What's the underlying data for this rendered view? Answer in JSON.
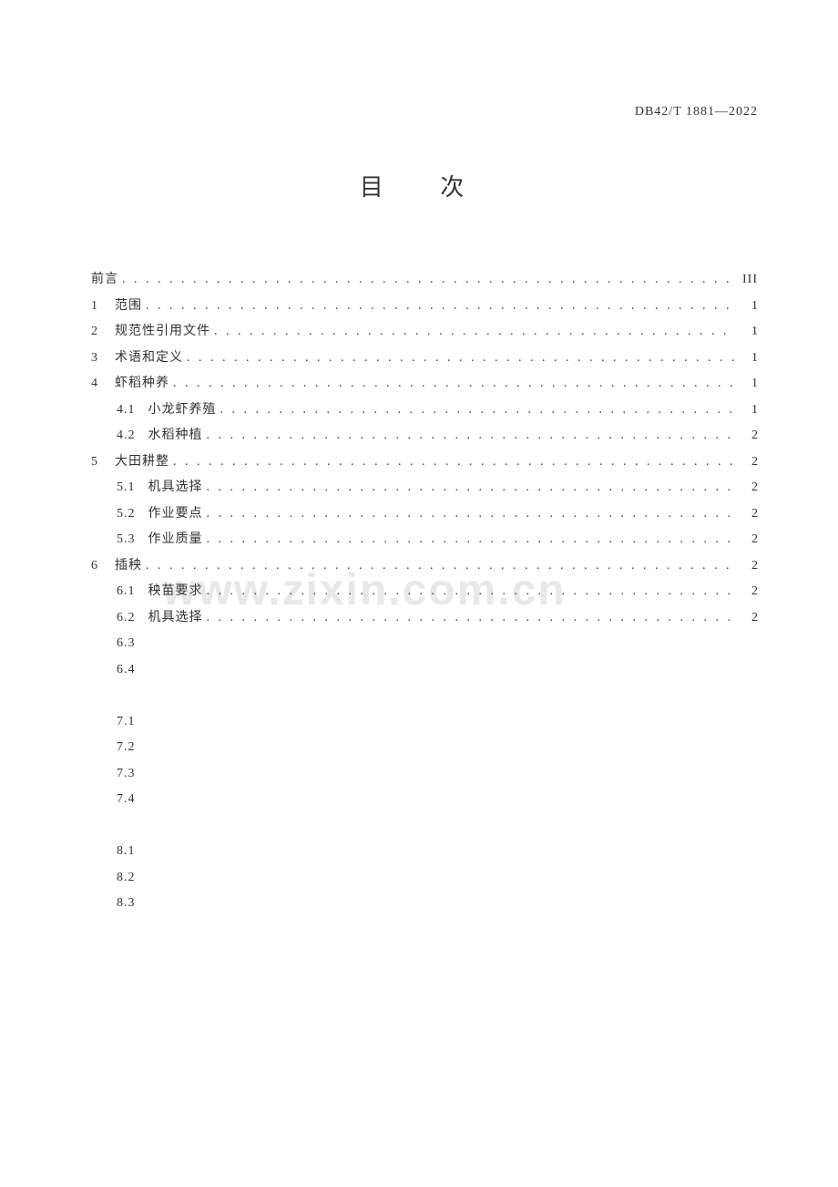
{
  "document": {
    "standard_code": "DB42/T 1881—2022",
    "title": "目 次",
    "watermark": "www.zixin.com.cn"
  },
  "toc": {
    "entries": [
      {
        "level": 0,
        "num": "",
        "label": "前言",
        "page": "III",
        "roman": true,
        "dots": true
      },
      {
        "level": 0,
        "num": "1",
        "label": "范围",
        "page": "1",
        "dots": true
      },
      {
        "level": 0,
        "num": "2",
        "label": "规范性引用文件",
        "page": "1",
        "dots": true
      },
      {
        "level": 0,
        "num": "3",
        "label": "术语和定义",
        "page": "1",
        "dots": true
      },
      {
        "level": 0,
        "num": "4",
        "label": "虾稻种养",
        "page": "1",
        "dots": true
      },
      {
        "level": 1,
        "num": "4.1",
        "label": "小龙虾养殖",
        "page": "1",
        "dots": true
      },
      {
        "level": 1,
        "num": "4.2",
        "label": "水稻种植",
        "page": "2",
        "dots": true
      },
      {
        "level": 0,
        "num": "5",
        "label": "大田耕整",
        "page": "2",
        "dots": true
      },
      {
        "level": 1,
        "num": "5.1",
        "label": "机具选择",
        "page": "2",
        "dots": true
      },
      {
        "level": 1,
        "num": "5.2",
        "label": "作业要点",
        "page": "2",
        "dots": true
      },
      {
        "level": 1,
        "num": "5.3",
        "label": "作业质量",
        "page": "2",
        "dots": true
      },
      {
        "level": 0,
        "num": "6",
        "label": "插秧",
        "page": "2",
        "dots": true
      },
      {
        "level": 1,
        "num": "6.1",
        "label": "秧苗要求",
        "page": "2",
        "dots": true
      },
      {
        "level": 1,
        "num": "6.2",
        "label": "机具选择",
        "page": "2",
        "dots": true
      },
      {
        "level": 1,
        "num": "6.3",
        "label": "",
        "page": "",
        "dots": false
      },
      {
        "level": 1,
        "num": "6.4",
        "label": "",
        "page": "",
        "dots": false
      },
      {
        "level": 0,
        "num": "",
        "label": "",
        "page": "",
        "dots": false,
        "spacer": true
      },
      {
        "level": 1,
        "num": "7.1",
        "label": "",
        "page": "",
        "dots": false
      },
      {
        "level": 1,
        "num": "7.2",
        "label": "",
        "page": "",
        "dots": false
      },
      {
        "level": 1,
        "num": "7.3",
        "label": "",
        "page": "",
        "dots": false
      },
      {
        "level": 1,
        "num": "7.4",
        "label": "",
        "page": "",
        "dots": false
      },
      {
        "level": 0,
        "num": "",
        "label": "",
        "page": "",
        "dots": false,
        "spacer": true
      },
      {
        "level": 1,
        "num": "8.1",
        "label": "",
        "page": "",
        "dots": false
      },
      {
        "level": 1,
        "num": "8.2",
        "label": "",
        "page": "",
        "dots": false
      },
      {
        "level": 1,
        "num": "8.3",
        "label": "",
        "page": "",
        "dots": false
      }
    ]
  },
  "styles": {
    "text_color": "#333333",
    "watermark_color": "#e8e8e8",
    "background_color": "#ffffff",
    "title_fontsize": 26,
    "body_fontsize": 14,
    "watermark_fontsize": 48
  }
}
